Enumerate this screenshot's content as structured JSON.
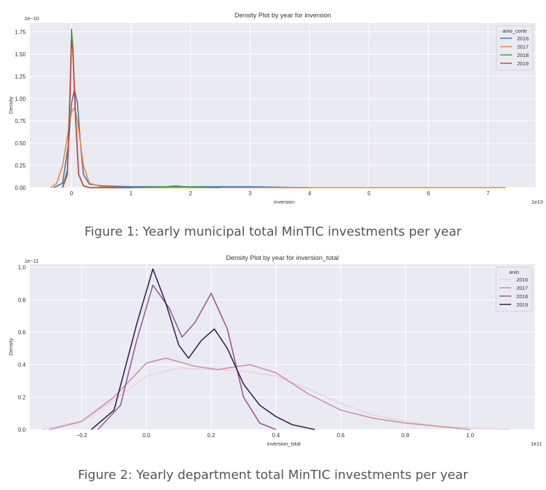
{
  "figures": [
    {
      "caption": "Figure 1: Yearly municipal total MinTIC investments per year",
      "chart_data": {
        "type": "line",
        "title": "Density Plot by year for inversion",
        "xlabel": "inversion",
        "ylabel": "Density",
        "x_multiplier": "1e10",
        "y_multiplier": "1e−10",
        "x_ticks": [
          0,
          1,
          2,
          3,
          4,
          5,
          6,
          7
        ],
        "y_ticks": [
          "0.00",
          "0.25",
          "0.50",
          "0.75",
          "1.00",
          "1.25",
          "1.50",
          "1.75"
        ],
        "xlim": [
          -0.7,
          7.8
        ],
        "ylim": [
          0,
          1.85
        ],
        "grid": true,
        "legend": {
          "title": "anio_corte",
          "placement": "top-right"
        },
        "series": [
          {
            "name": "2016",
            "color": "#3477b4",
            "x": [
              -0.3,
              -0.15,
              -0.05,
              0.0,
              0.05,
              0.1,
              0.15,
              0.2,
              0.3,
              0.5,
              1.0,
              2.0,
              3.0,
              4.0
            ],
            "y": [
              0.0,
              0.05,
              0.5,
              0.95,
              1.1,
              0.95,
              0.5,
              0.15,
              0.04,
              0.02,
              0.01,
              0.01,
              0.01,
              0.0
            ]
          },
          {
            "name": "2017",
            "color": "#f5852b",
            "x": [
              -0.35,
              -0.25,
              -0.15,
              -0.05,
              0.0,
              0.05,
              0.1,
              0.2,
              0.3,
              0.5,
              1.0,
              2.0,
              3.0,
              5.0,
              7.3
            ],
            "y": [
              0.0,
              0.05,
              0.25,
              0.65,
              0.85,
              0.9,
              0.75,
              0.25,
              0.05,
              0.01,
              0.0,
              0.0,
              0.0,
              0.0,
              0.0
            ]
          },
          {
            "name": "2018",
            "color": "#3ba13a",
            "x": [
              -0.15,
              -0.07,
              -0.02,
              0.0,
              0.02,
              0.07,
              0.12,
              0.2,
              0.3,
              1.0,
              1.6,
              1.75,
              1.9,
              2.5
            ],
            "y": [
              0.0,
              0.2,
              1.2,
              1.78,
              1.6,
              0.8,
              0.15,
              0.02,
              0.0,
              0.0,
              0.01,
              0.02,
              0.01,
              0.0
            ]
          },
          {
            "name": "2019",
            "color": "#d43a3c",
            "x": [
              -0.15,
              -0.07,
              -0.02,
              0.0,
              0.02,
              0.07,
              0.12,
              0.2,
              0.3,
              1.0
            ],
            "y": [
              0.0,
              0.15,
              1.1,
              1.65,
              1.55,
              0.75,
              0.15,
              0.02,
              0.0,
              0.0
            ]
          }
        ]
      }
    },
    {
      "caption": "Figure 2: Yearly department total MinTIC investments per year",
      "chart_data": {
        "type": "line",
        "title": "Density Plot by year for inversion_total",
        "xlabel": "inversion_total",
        "ylabel": "Density",
        "x_multiplier": "1e11",
        "y_multiplier": "1e−11",
        "x_ticks": [
          "−0.2",
          "0.0",
          "0.2",
          "0.4",
          "0.6",
          "0.8",
          "1.0"
        ],
        "x_tick_values": [
          -0.2,
          0.0,
          0.2,
          0.4,
          0.6,
          0.8,
          1.0
        ],
        "y_ticks": [
          "0.0",
          "0.2",
          "0.4",
          "0.6",
          "0.8",
          "1.0"
        ],
        "xlim": [
          -0.36,
          1.2
        ],
        "ylim": [
          0,
          1.02
        ],
        "grid": true,
        "legend": {
          "title": "anio",
          "placement": "top-right"
        },
        "series": [
          {
            "name": "2016",
            "color": "#efd2d6",
            "x": [
              -0.32,
              -0.2,
              -0.1,
              0.0,
              0.1,
              0.2,
              0.3,
              0.4,
              0.5,
              0.6,
              0.7,
              0.8,
              0.9,
              1.0,
              1.12
            ],
            "y": [
              0.0,
              0.05,
              0.18,
              0.33,
              0.38,
              0.37,
              0.36,
              0.33,
              0.25,
              0.16,
              0.09,
              0.05,
              0.02,
              0.01,
              0.0
            ]
          },
          {
            "name": "2017",
            "color": "#cc90a6",
            "x": [
              -0.3,
              -0.2,
              -0.1,
              0.0,
              0.06,
              0.15,
              0.22,
              0.32,
              0.4,
              0.5,
              0.6,
              0.7,
              0.8,
              0.9,
              1.0
            ],
            "y": [
              0.0,
              0.05,
              0.2,
              0.41,
              0.44,
              0.39,
              0.37,
              0.4,
              0.35,
              0.22,
              0.12,
              0.07,
              0.04,
              0.02,
              0.0
            ]
          },
          {
            "name": "2018",
            "color": "#99548b",
            "x": [
              -0.15,
              -0.08,
              -0.03,
              0.02,
              0.07,
              0.11,
              0.15,
              0.2,
              0.25,
              0.3,
              0.35,
              0.4
            ],
            "y": [
              0.0,
              0.15,
              0.55,
              0.89,
              0.75,
              0.57,
              0.66,
              0.84,
              0.62,
              0.2,
              0.04,
              0.0
            ]
          },
          {
            "name": "2019",
            "color": "#2f1f47",
            "x": [
              -0.17,
              -0.1,
              -0.03,
              0.02,
              0.06,
              0.1,
              0.13,
              0.17,
              0.21,
              0.25,
              0.3,
              0.35,
              0.4,
              0.45,
              0.52
            ],
            "y": [
              0.0,
              0.12,
              0.65,
              0.99,
              0.78,
              0.52,
              0.44,
              0.55,
              0.62,
              0.5,
              0.28,
              0.15,
              0.08,
              0.03,
              0.0
            ]
          }
        ]
      }
    }
  ]
}
